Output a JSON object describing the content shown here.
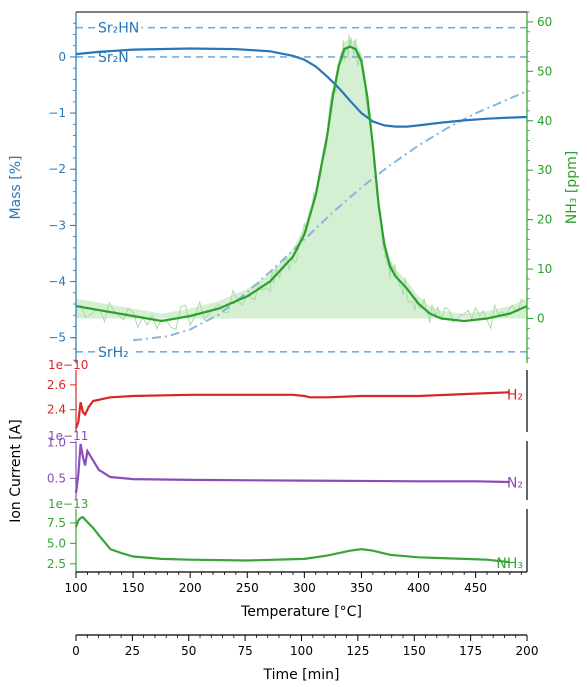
{
  "chart_data": [
    {
      "type": "line",
      "panel": "mass-and-ammonia",
      "xlabel": "",
      "ylabel_left": "Mass [%]",
      "ylabel_right": "NH₃ [ppm]",
      "xlim": [
        100,
        495
      ],
      "ylim_left": [
        -5.45,
        0.8
      ],
      "ylim_right": [
        -9,
        62
      ],
      "yticks_left": [
        "0",
        "−1",
        "−2",
        "−3",
        "−4",
        "−5"
      ],
      "yticks_right": [
        "0",
        "10",
        "20",
        "30",
        "40",
        "50",
        "60"
      ],
      "reference_lines": [
        {
          "label": "Sr₂HN",
          "y": 0.52
        },
        {
          "label": "Sr₂N",
          "y": 0.0
        },
        {
          "label": "SrH₂",
          "y": -5.25
        }
      ],
      "series": [
        {
          "name": "",
          "axis": "left",
          "style": "solid",
          "x": [
            100,
            120,
            150,
            200,
            240,
            270,
            290,
            300,
            310,
            320,
            330,
            340,
            350,
            360,
            370,
            380,
            390,
            400,
            420,
            440,
            460,
            480,
            495
          ],
          "y": [
            0.05,
            0.09,
            0.13,
            0.15,
            0.14,
            0.1,
            0.02,
            -0.05,
            -0.17,
            -0.35,
            -0.55,
            -0.78,
            -1.0,
            -1.15,
            -1.22,
            -1.24,
            -1.24,
            -1.22,
            -1.17,
            -1.13,
            -1.1,
            -1.08,
            -1.07
          ]
        },
        {
          "name": "",
          "axis": "right",
          "style": "dashdot",
          "x": [
            150,
            180,
            200,
            225,
            250,
            275,
            300,
            325,
            350,
            375,
            400,
            425,
            450,
            475,
            495
          ],
          "y": [
            -4.4,
            -3.6,
            -2.2,
            0.8,
            5.3,
            10.5,
            16.0,
            21.5,
            26.5,
            31.0,
            35.0,
            38.5,
            41.5,
            44.0,
            46.0
          ]
        },
        {
          "name": "",
          "axis": "right",
          "style": "solid",
          "x": [
            100,
            125,
            150,
            175,
            200,
            225,
            250,
            270,
            280,
            290,
            300,
            310,
            320,
            325,
            330,
            335,
            340,
            345,
            350,
            355,
            360,
            365,
            370,
            375,
            380,
            390,
            400,
            410,
            420,
            440,
            460,
            480,
            495
          ],
          "y": [
            2.5,
            1.5,
            0.5,
            -0.5,
            0.5,
            2.0,
            4.5,
            7.5,
            10.0,
            12.5,
            17.0,
            25.0,
            37.0,
            45.0,
            51.0,
            54.5,
            55.0,
            54.5,
            52.0,
            45.0,
            35.0,
            23.0,
            15.0,
            10.5,
            8.5,
            6.0,
            3.0,
            1.0,
            0.0,
            -0.5,
            0.0,
            1.0,
            2.5
          ]
        }
      ]
    },
    {
      "type": "line",
      "panel": "ion-current-h2",
      "multiplier": "1e−10",
      "xlim": [
        100,
        495
      ],
      "ylim": [
        2.22,
        2.72
      ],
      "yticks": [
        "2.4",
        "2.6"
      ],
      "series": [
        {
          "name": "H₂",
          "x": [
            100,
            102,
            104,
            106,
            108,
            111,
            115,
            120,
            130,
            150,
            200,
            250,
            290,
            300,
            305,
            320,
            350,
            400,
            450,
            480
          ],
          "y": [
            2.25,
            2.3,
            2.46,
            2.38,
            2.36,
            2.42,
            2.47,
            2.48,
            2.5,
            2.51,
            2.52,
            2.52,
            2.52,
            2.51,
            2.5,
            2.5,
            2.51,
            2.51,
            2.53,
            2.54
          ]
        }
      ]
    },
    {
      "type": "line",
      "panel": "ion-current-n2",
      "multiplier": "1e−11",
      "xlim": [
        100,
        495
      ],
      "ylim": [
        0.2,
        1.02
      ],
      "yticks": [
        "0.5",
        "1.0"
      ],
      "series": [
        {
          "name": "N₂",
          "x": [
            100,
            102,
            104,
            106,
            108,
            110,
            115,
            120,
            130,
            150,
            200,
            300,
            400,
            450,
            480
          ],
          "y": [
            0.3,
            0.55,
            0.98,
            0.8,
            0.68,
            0.88,
            0.75,
            0.62,
            0.52,
            0.49,
            0.48,
            0.47,
            0.46,
            0.46,
            0.45
          ]
        }
      ]
    },
    {
      "type": "line",
      "panel": "ion-current-nh3",
      "multiplier": "1e−13",
      "xlim": [
        100,
        495
      ],
      "ylim": [
        1.5,
        9.2
      ],
      "yticks": [
        "2.5",
        "5.0",
        "7.5"
      ],
      "series": [
        {
          "name": "NH₃",
          "x": [
            100,
            102,
            104,
            106,
            110,
            115,
            120,
            130,
            140,
            150,
            175,
            200,
            250,
            300,
            320,
            340,
            350,
            360,
            375,
            400,
            420,
            440,
            460,
            480
          ],
          "y": [
            7.0,
            7.8,
            8.1,
            8.2,
            7.6,
            6.9,
            6.0,
            4.3,
            3.8,
            3.4,
            3.1,
            3.0,
            2.9,
            3.1,
            3.5,
            4.1,
            4.3,
            4.1,
            3.6,
            3.3,
            3.2,
            3.1,
            3.0,
            2.7
          ]
        }
      ]
    }
  ],
  "axes": {
    "temperature_label": "Temperature [°C]",
    "temperature_ticks": [
      100,
      150,
      200,
      250,
      300,
      350,
      400,
      450
    ],
    "time_label": "Time [min]",
    "time_ticks": [
      0,
      25,
      50,
      75,
      100,
      125,
      150,
      175,
      200
    ],
    "time_range": [
      0,
      200
    ],
    "ion_current_label": "Ion Current [A]"
  },
  "colors": {
    "mass": "#2877b8",
    "mass_dashdot": "#8ab7d9",
    "ammonia": "#2ca02c",
    "ammonia_fill": "#d5efd2",
    "hydrogen": "#d62728",
    "nitrogen": "#8a4db5",
    "ammonia_ion": "#3aa33a",
    "reference": "#78aedb",
    "axis": "#000000"
  }
}
